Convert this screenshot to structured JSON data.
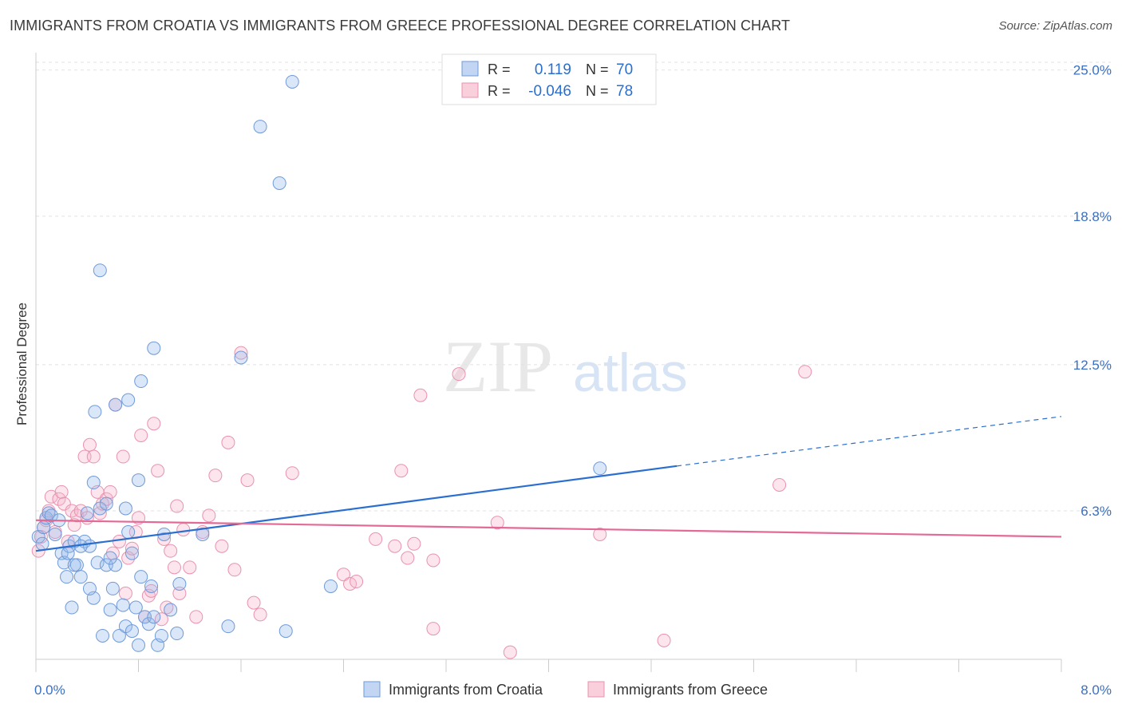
{
  "title": "IMMIGRANTS FROM CROATIA VS IMMIGRANTS FROM GREECE PROFESSIONAL DEGREE CORRELATION CHART",
  "source": "Source: ZipAtlas.com",
  "watermark": {
    "zip": "ZIP",
    "atlas": "atlas"
  },
  "stats": [
    {
      "r_label": "R =",
      "r_value": "0.119",
      "n_label": "N =",
      "n_value": "70"
    },
    {
      "r_label": "R =",
      "r_value": "-0.046",
      "n_label": "N =",
      "n_value": "78"
    }
  ],
  "chart_data": {
    "type": "scatter",
    "ylabel": "Professional Degree",
    "x_tick_labels": [
      "0.0%",
      "8.0%"
    ],
    "y_tick_labels": [
      "6.3%",
      "12.5%",
      "18.8%",
      "25.0%"
    ],
    "y_ticks": [
      6.3,
      12.5,
      18.8,
      25.0
    ],
    "xlim": [
      0,
      8.0
    ],
    "ylim": [
      0,
      25.6
    ],
    "grid": true,
    "legend_position": "bottom-center",
    "colors": {
      "croatia": "#5b8fd6",
      "greece": "#e88aa8",
      "croatia_line": "#2a6fd0",
      "greece_line": "#e36a96",
      "tick_text": "#3a6fc4"
    },
    "series": [
      {
        "name": "Immigrants from Croatia",
        "r": 0.119,
        "n": 70,
        "trend": {
          "x0": 0,
          "y0": 4.6,
          "x1": 5.0,
          "y1": 8.2,
          "x_end": 8.0,
          "y_end": 10.3
        },
        "points": [
          [
            0.02,
            5.2
          ],
          [
            0.05,
            4.9
          ],
          [
            0.06,
            5.6
          ],
          [
            0.08,
            6.0
          ],
          [
            0.1,
            6.2
          ],
          [
            0.12,
            6.1
          ],
          [
            0.15,
            5.3
          ],
          [
            0.18,
            5.9
          ],
          [
            0.2,
            4.5
          ],
          [
            0.22,
            4.1
          ],
          [
            0.24,
            3.5
          ],
          [
            0.26,
            4.8
          ],
          [
            0.28,
            2.2
          ],
          [
            0.3,
            5.0
          ],
          [
            0.32,
            4.0
          ],
          [
            0.35,
            3.5
          ],
          [
            0.38,
            5.0
          ],
          [
            0.4,
            6.2
          ],
          [
            0.42,
            4.8
          ],
          [
            0.45,
            2.6
          ],
          [
            0.48,
            4.1
          ],
          [
            0.5,
            6.4
          ],
          [
            0.52,
            1.0
          ],
          [
            0.55,
            4.0
          ],
          [
            0.58,
            2.1
          ],
          [
            0.6,
            3.0
          ],
          [
            0.62,
            4.0
          ],
          [
            0.65,
            1.0
          ],
          [
            0.68,
            2.3
          ],
          [
            0.7,
            1.4
          ],
          [
            0.72,
            5.4
          ],
          [
            0.75,
            1.2
          ],
          [
            0.78,
            2.2
          ],
          [
            0.8,
            0.6
          ],
          [
            0.82,
            3.5
          ],
          [
            0.85,
            1.8
          ],
          [
            0.88,
            1.5
          ],
          [
            0.9,
            3.1
          ],
          [
            0.92,
            1.8
          ],
          [
            0.95,
            0.6
          ],
          [
            0.98,
            1.0
          ],
          [
            1.0,
            5.3
          ],
          [
            1.05,
            2.1
          ],
          [
            1.1,
            1.1
          ],
          [
            0.45,
            7.5
          ],
          [
            0.8,
            7.6
          ],
          [
            0.92,
            13.2
          ],
          [
            0.82,
            11.8
          ],
          [
            0.72,
            11.0
          ],
          [
            0.62,
            10.8
          ],
          [
            1.6,
            12.8
          ],
          [
            0.5,
            16.5
          ],
          [
            1.9,
            20.2
          ],
          [
            2.0,
            24.5
          ],
          [
            1.75,
            22.6
          ],
          [
            0.46,
            10.5
          ],
          [
            0.58,
            4.3
          ],
          [
            0.7,
            6.4
          ],
          [
            0.35,
            4.8
          ],
          [
            0.25,
            4.5
          ],
          [
            0.55,
            6.6
          ],
          [
            0.75,
            4.5
          ],
          [
            0.3,
            4.0
          ],
          [
            0.42,
            3.0
          ],
          [
            1.12,
            3.2
          ],
          [
            1.5,
            1.4
          ],
          [
            1.3,
            5.3
          ],
          [
            2.3,
            3.1
          ],
          [
            4.4,
            8.1
          ],
          [
            1.95,
            1.2
          ]
        ]
      },
      {
        "name": "Immigrants from Greece",
        "r": -0.046,
        "n": 78,
        "trend": {
          "x0": 0,
          "y0": 5.9,
          "x1": 8.0,
          "y1": 5.2
        },
        "points": [
          [
            0.02,
            4.6
          ],
          [
            0.04,
            5.2
          ],
          [
            0.06,
            5.6
          ],
          [
            0.08,
            5.9
          ],
          [
            0.1,
            6.3
          ],
          [
            0.12,
            6.9
          ],
          [
            0.15,
            5.4
          ],
          [
            0.18,
            6.8
          ],
          [
            0.2,
            7.1
          ],
          [
            0.22,
            6.6
          ],
          [
            0.25,
            5.0
          ],
          [
            0.28,
            6.3
          ],
          [
            0.3,
            5.7
          ],
          [
            0.32,
            6.1
          ],
          [
            0.35,
            6.3
          ],
          [
            0.38,
            8.6
          ],
          [
            0.4,
            6.0
          ],
          [
            0.42,
            9.1
          ],
          [
            0.45,
            8.6
          ],
          [
            0.48,
            7.1
          ],
          [
            0.5,
            6.2
          ],
          [
            0.52,
            6.6
          ],
          [
            0.55,
            6.8
          ],
          [
            0.58,
            7.1
          ],
          [
            0.6,
            4.5
          ],
          [
            0.62,
            10.8
          ],
          [
            0.65,
            5.0
          ],
          [
            0.68,
            8.6
          ],
          [
            0.7,
            2.8
          ],
          [
            0.72,
            4.3
          ],
          [
            0.75,
            4.7
          ],
          [
            0.78,
            5.4
          ],
          [
            0.8,
            6.0
          ],
          [
            0.82,
            9.5
          ],
          [
            0.85,
            1.8
          ],
          [
            0.88,
            2.7
          ],
          [
            0.9,
            2.9
          ],
          [
            0.92,
            10.0
          ],
          [
            0.95,
            8.0
          ],
          [
            0.98,
            1.7
          ],
          [
            1.0,
            5.1
          ],
          [
            1.02,
            2.2
          ],
          [
            1.05,
            4.6
          ],
          [
            1.08,
            3.9
          ],
          [
            1.1,
            6.5
          ],
          [
            1.12,
            2.8
          ],
          [
            1.15,
            5.5
          ],
          [
            1.2,
            3.9
          ],
          [
            1.25,
            1.8
          ],
          [
            1.3,
            5.4
          ],
          [
            1.35,
            6.1
          ],
          [
            1.4,
            7.8
          ],
          [
            1.45,
            4.8
          ],
          [
            1.5,
            9.2
          ],
          [
            1.55,
            3.8
          ],
          [
            1.6,
            13.0
          ],
          [
            1.65,
            7.6
          ],
          [
            1.7,
            2.4
          ],
          [
            1.75,
            1.9
          ],
          [
            2.0,
            7.9
          ],
          [
            2.4,
            3.6
          ],
          [
            2.45,
            3.2
          ],
          [
            2.5,
            3.3
          ],
          [
            2.65,
            5.1
          ],
          [
            2.8,
            4.8
          ],
          [
            2.85,
            8.0
          ],
          [
            2.9,
            4.3
          ],
          [
            2.95,
            4.9
          ],
          [
            3.0,
            11.2
          ],
          [
            3.1,
            1.3
          ],
          [
            3.1,
            4.2
          ],
          [
            3.3,
            12.1
          ],
          [
            3.6,
            5.8
          ],
          [
            3.7,
            0.3
          ],
          [
            4.4,
            5.3
          ],
          [
            4.9,
            0.8
          ],
          [
            5.8,
            7.4
          ],
          [
            6.0,
            12.2
          ]
        ]
      }
    ]
  }
}
